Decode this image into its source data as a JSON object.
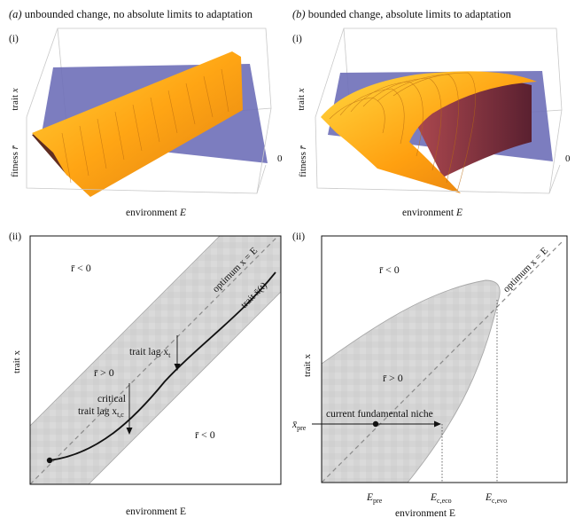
{
  "panel_a": {
    "title_prefix": "(a)",
    "title_text": "unbounded change, no absolute limits to adaptation",
    "sub_i": "(i)",
    "sub_ii": "(ii)",
    "surface": {
      "axis_trait": "trait",
      "axis_trait_var": "x",
      "axis_fitness": "fitness",
      "axis_fitness_var": "r̄",
      "axis_env": "environment",
      "axis_env_var": "E",
      "zero_label": "0"
    },
    "plot": {
      "ylabel": "trait x",
      "xlabel": "environment E",
      "r_neg_top": "r̄ < 0",
      "r_pos": "r̄ > 0",
      "r_neg_bottom": "r̄ < 0",
      "optimum_label": "optimum x = E",
      "trait_label": "trait x̄(t)",
      "lag_label": "trait lag x",
      "lag_sub": "t",
      "critical_line1": "critical",
      "critical_line2": "trait lag x",
      "critical_sub": "t,c"
    }
  },
  "panel_b": {
    "title_prefix": "(b)",
    "title_text": "bounded change, absolute limits to adaptation",
    "sub_i": "(i)",
    "sub_ii": "(ii)",
    "surface": {
      "axis_trait": "trait",
      "axis_trait_var": "x",
      "axis_fitness": "fitness",
      "axis_fitness_var": "r̄",
      "axis_env": "environment",
      "axis_env_var": "E",
      "zero_label": "0"
    },
    "plot": {
      "ylabel": "trait x",
      "xlabel": "environment E",
      "r_neg": "r̄ < 0",
      "r_pos": "r̄ > 0",
      "optimum_label": "optimum x = E",
      "niche_label": "current fundamental niche",
      "x_pre_label": "x̄",
      "x_pre_sub": "pre",
      "tick_E_pre": "E",
      "tick_E_pre_sub": "pre",
      "tick_E_eco": "E",
      "tick_E_eco_sub": "c,eco",
      "tick_E_evo": "E",
      "tick_E_evo_sub": "c,evo"
    }
  },
  "colors": {
    "plane": "#6e6fb8",
    "surface_top": "#ffb21a",
    "surface_side": "#7a3a22",
    "region": "#d6d6d6",
    "optimum_line": "#8a8a8a",
    "curve": "#111111"
  }
}
